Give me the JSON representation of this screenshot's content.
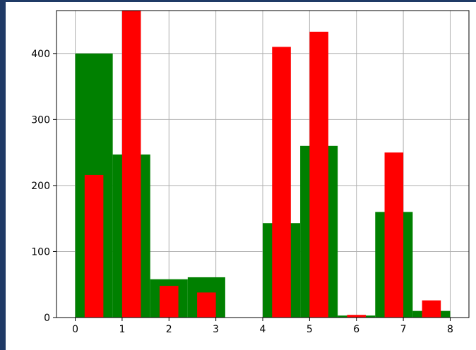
{
  "colors": {
    "green": "#008000",
    "red": "#ff0000",
    "grid": "#b0b0b0",
    "background": "#1f3a66"
  },
  "chart_data": {
    "type": "bar",
    "title": "",
    "xlabel": "",
    "ylabel": "",
    "xlim": [
      -0.4,
      8.4
    ],
    "ylim": [
      0,
      465
    ],
    "grid": true,
    "legend": "none",
    "xticks": [
      0,
      1,
      2,
      3,
      4,
      5,
      6,
      7,
      8
    ],
    "yticks": [
      0,
      100,
      200,
      300,
      400
    ],
    "series": [
      {
        "color": "#008000",
        "kind": "histogram",
        "bins": [
          {
            "x0": 0.0,
            "x1": 0.8,
            "value": 400
          },
          {
            "x0": 0.8,
            "x1": 1.6,
            "value": 247
          },
          {
            "x0": 1.6,
            "x1": 2.4,
            "value": 58
          },
          {
            "x0": 2.4,
            "x1": 3.2,
            "value": 61
          },
          {
            "x0": 3.2,
            "x1": 4.0,
            "value": 0
          },
          {
            "x0": 4.0,
            "x1": 4.8,
            "value": 143
          },
          {
            "x0": 4.8,
            "x1": 5.6,
            "value": 260
          },
          {
            "x0": 5.6,
            "x1": 6.4,
            "value": 3
          },
          {
            "x0": 6.4,
            "x1": 7.2,
            "value": 160
          },
          {
            "x0": 7.2,
            "x1": 8.0,
            "value": 10
          }
        ]
      },
      {
        "color": "#ff0000",
        "kind": "bar",
        "bins": [
          {
            "x0": 0.2,
            "x1": 0.6,
            "value": 216
          },
          {
            "x0": 1.0,
            "x1": 1.4,
            "value": 465
          },
          {
            "x0": 1.8,
            "x1": 2.2,
            "value": 48
          },
          {
            "x0": 2.6,
            "x1": 3.0,
            "value": 38
          },
          {
            "x0": 4.2,
            "x1": 4.6,
            "value": 410
          },
          {
            "x0": 5.0,
            "x1": 5.4,
            "value": 433
          },
          {
            "x0": 5.8,
            "x1": 6.2,
            "value": 4
          },
          {
            "x0": 6.6,
            "x1": 7.0,
            "value": 250
          },
          {
            "x0": 7.4,
            "x1": 7.8,
            "value": 26
          }
        ]
      }
    ]
  }
}
